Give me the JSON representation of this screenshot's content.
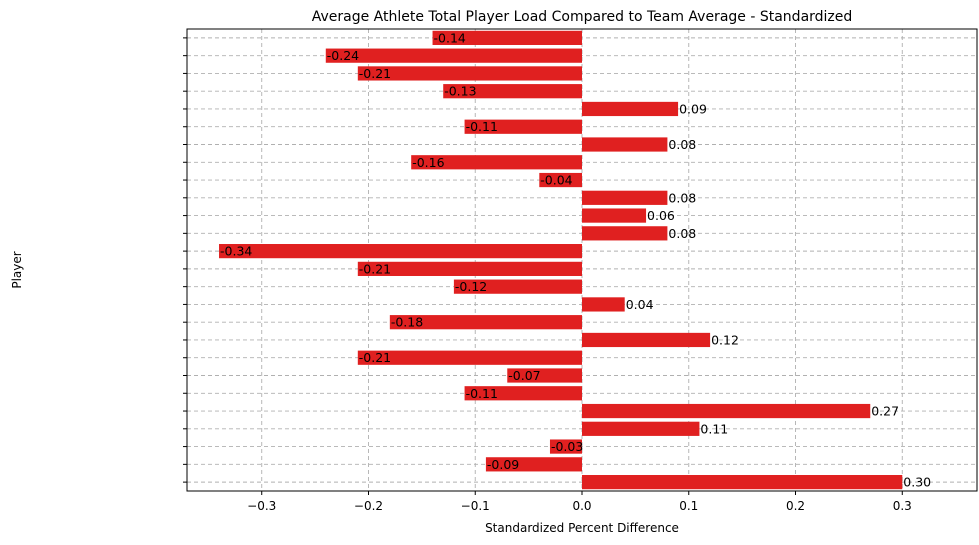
{
  "chart_data": {
    "type": "bar",
    "orientation": "horizontal",
    "title": "Average Athlete Total Player Load Compared to Team Average - Standardized",
    "xlabel": "Standardized Percent Difference",
    "ylabel": "Player",
    "xlim": [
      -0.37,
      0.37
    ],
    "xticks": [
      -0.3,
      -0.2,
      -0.1,
      0.0,
      0.1,
      0.2,
      0.3
    ],
    "xtick_labels": [
      "−0.3",
      "−0.2",
      "−0.1",
      "0.0",
      "0.1",
      "0.2",
      "0.3"
    ],
    "grid": true,
    "bar_color": "#e02020",
    "values": [
      0.3,
      -0.09,
      -0.03,
      0.11,
      0.27,
      -0.11,
      -0.07,
      -0.21,
      0.12,
      -0.18,
      0.04,
      -0.12,
      -0.21,
      -0.34,
      0.08,
      0.06,
      0.08,
      -0.04,
      -0.16,
      0.08,
      -0.11,
      0.09,
      -0.13,
      -0.21,
      -0.24,
      -0.14
    ],
    "data_labels": [
      "0.30",
      "-0.09",
      "-0.03",
      "0.11",
      "0.27",
      "-0.11",
      "-0.07",
      "-0.21",
      "0.12",
      "-0.18",
      "0.04",
      "-0.12",
      "-0.21",
      "-0.34",
      "0.08",
      "0.06",
      "0.08",
      "-0.04",
      "-0.16",
      "0.08",
      "-0.11",
      "0.09",
      "-0.13",
      "-0.21",
      "-0.24",
      "-0.14"
    ]
  }
}
